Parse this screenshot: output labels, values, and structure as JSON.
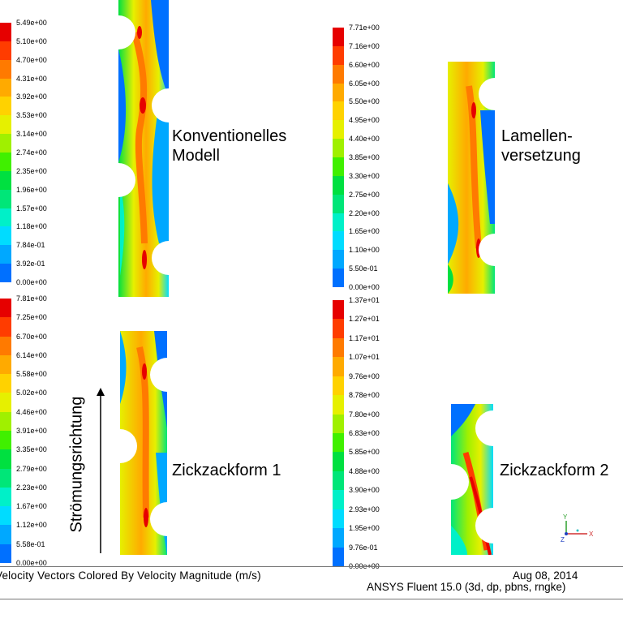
{
  "colors": [
    "#0000c8",
    "#0033f0",
    "#0070ff",
    "#00a8ff",
    "#00dcff",
    "#00f0c8",
    "#00e678",
    "#00e040",
    "#40f000",
    "#a0f000",
    "#e6f000",
    "#ffd200",
    "#ffaa00",
    "#ff7a00",
    "#ff3c00",
    "#e60000"
  ],
  "legends": [
    {
      "id": "tl",
      "labels": [
        "5.49e+00",
        "5.10e+00",
        "4.70e+00",
        "4.31e+00",
        "3.92e+00",
        "3.53e+00",
        "3.14e+00",
        "2.74e+00",
        "2.35e+00",
        "1.96e+00",
        "1.57e+00",
        "1.18e+00",
        "7.84e-01",
        "3.92e-01",
        "0.00e+00"
      ]
    },
    {
      "id": "tr",
      "labels": [
        "7.71e+00",
        "7.16e+00",
        "6.60e+00",
        "6.05e+00",
        "5.50e+00",
        "4.95e+00",
        "4.40e+00",
        "3.85e+00",
        "3.30e+00",
        "2.75e+00",
        "2.20e+00",
        "1.65e+00",
        "1.10e+00",
        "5.50e-01",
        "0.00e+00"
      ]
    },
    {
      "id": "bl",
      "labels": [
        "7.81e+00",
        "7.25e+00",
        "6.70e+00",
        "6.14e+00",
        "5.58e+00",
        "5.02e+00",
        "4.46e+00",
        "3.91e+00",
        "3.35e+00",
        "2.79e+00",
        "2.23e+00",
        "1.67e+00",
        "1.12e+00",
        "5.58e-01",
        "0.00e+00"
      ]
    },
    {
      "id": "br",
      "labels": [
        "1.37e+01",
        "1.27e+01",
        "1.17e+01",
        "1.07e+01",
        "9.76e+00",
        "8.78e+00",
        "7.80e+00",
        "6.83e+00",
        "5.85e+00",
        "4.88e+00",
        "3.90e+00",
        "2.93e+00",
        "1.95e+00",
        "9.76e-01",
        "0.00e+00"
      ]
    }
  ],
  "models": {
    "konventionell": "Konventionelles\nModell",
    "lamellen": "Lamellen-\nversetzung",
    "zickzack1": "Zickzackform 1",
    "zickzack2": "Zickzackform 2"
  },
  "flow_label": "Strömungsrichtung",
  "axes_triad": {
    "y": "Y",
    "x": "X",
    "z": "Z"
  },
  "footer": {
    "caption": "Velocity Vectors Colored By Velocity Magnitude (m/s)",
    "date": "Aug 08, 2014",
    "software": "ANSYS Fluent 15.0 (3d, dp, pbns, rngke)"
  }
}
